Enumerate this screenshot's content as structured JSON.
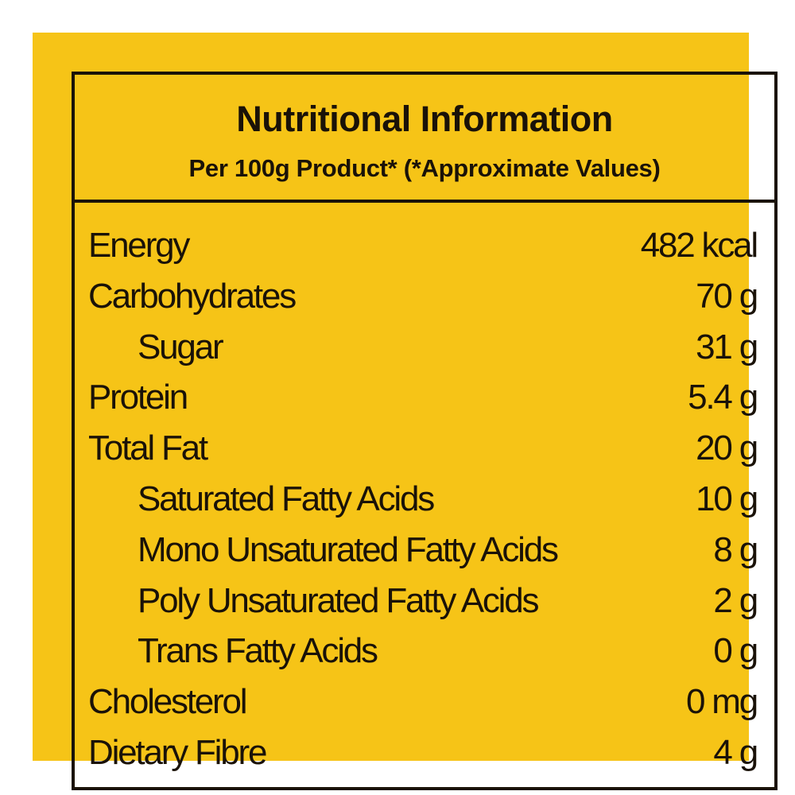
{
  "header": {
    "title": "Nutritional Information",
    "subtitle": "Per 100g Product* (*Approximate Values)"
  },
  "colors": {
    "background": "#F6C417",
    "text": "#1a1208"
  },
  "rows": [
    {
      "label": "Energy",
      "value": "482 kcal",
      "indent": false
    },
    {
      "label": "Carbohydrates",
      "value": "70 g",
      "indent": false
    },
    {
      "label": "Sugar",
      "value": "31 g",
      "indent": true
    },
    {
      "label": "Protein",
      "value": "5.4 g",
      "indent": false
    },
    {
      "label": "Total Fat",
      "value": "20 g",
      "indent": false
    },
    {
      "label": "Saturated Fatty Acids",
      "value": "10 g",
      "indent": true
    },
    {
      "label": "Mono Unsaturated Fatty Acids",
      "value": "8 g",
      "indent": true
    },
    {
      "label": "Poly Unsaturated Fatty Acids",
      "value": "2 g",
      "indent": true
    },
    {
      "label": "Trans Fatty Acids",
      "value": "0 g",
      "indent": true
    },
    {
      "label": "Cholesterol",
      "value": "0 mg",
      "indent": false
    },
    {
      "label": "Dietary Fibre",
      "value": "4 g",
      "indent": false
    }
  ]
}
